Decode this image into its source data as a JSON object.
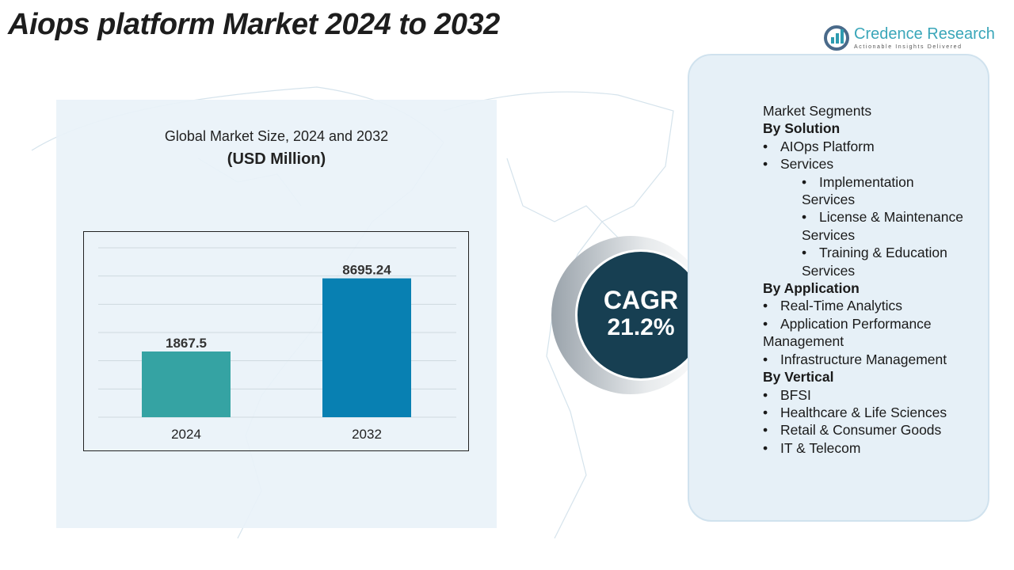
{
  "title": "Aiops platform Market 2024 to 2032",
  "logo": {
    "name": "Credence Research",
    "tagline": "Actionable Insights Delivered"
  },
  "chart_title": "Global Market Size, 2024 and 2032",
  "chart_unit": "(USD Million)",
  "chart_data": {
    "type": "bar",
    "categories": [
      "2024",
      "2032"
    ],
    "values": [
      1867.5,
      8695.24
    ],
    "value_labels": [
      "1867.5",
      "8695.24"
    ],
    "colors": [
      "#35a3a3",
      "#0880b2"
    ],
    "grid": true,
    "ylabel": "",
    "xlabel": ""
  },
  "cagr": {
    "label": "CAGR",
    "value": "21.2%"
  },
  "segments": {
    "heading": "Market Segments",
    "rows": [
      {
        "t": "By Solution",
        "k": "h"
      },
      {
        "t": "AIOps Platform",
        "k": "l1"
      },
      {
        "t": "Services",
        "k": "l1"
      },
      {
        "t": "Implementation Services",
        "k": "l2"
      },
      {
        "t": "License & Maintenance Services",
        "k": "l2"
      },
      {
        "t": "Training & Education Services",
        "k": "l2"
      },
      {
        "t": "By Application",
        "k": "h"
      },
      {
        "t": "Real-Time Analytics",
        "k": "l1"
      },
      {
        "t": "Application Performance Management",
        "k": "l1"
      },
      {
        "t": "Infrastructure Management",
        "k": "l1"
      },
      {
        "t": "By Vertical",
        "k": "h"
      },
      {
        "t": "BFSI",
        "k": "l1"
      },
      {
        "t": "Healthcare & Life Sciences",
        "k": "l1"
      },
      {
        "t": "Retail & Consumer Goods",
        "k": "l1"
      },
      {
        "t": "IT & Telecom",
        "k": "l1"
      }
    ]
  }
}
